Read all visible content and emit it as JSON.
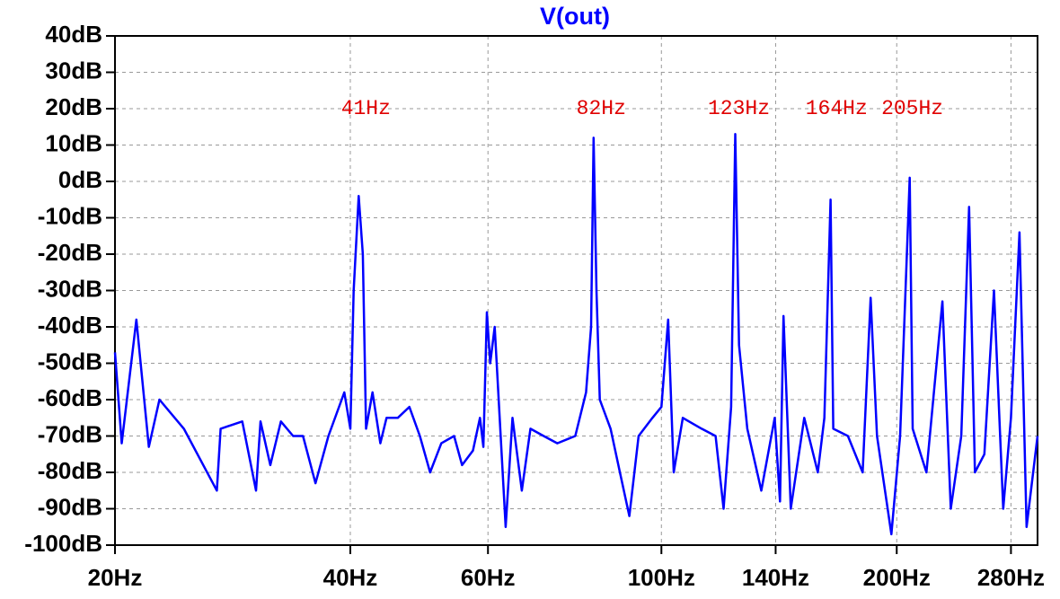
{
  "chart_data": {
    "type": "line",
    "series": [
      {
        "name": "V(out)",
        "color": "#0000ff",
        "x": [
          20,
          20.4,
          21.3,
          22.1,
          22.8,
          24.5,
          27.0,
          27.3,
          29.1,
          30.3,
          30.7,
          31.6,
          32.6,
          33.8,
          34.8,
          36.1,
          37.5,
          39.3,
          40.0,
          40.4,
          41.0,
          41.5,
          41.9,
          42.7,
          43.7,
          44.5,
          46.0,
          47.6,
          49.1,
          50.6,
          52.3,
          54.3,
          55.6,
          57.4,
          58.6,
          59.2,
          59.8,
          60.4,
          61.2,
          63.2,
          64.5,
          66.3,
          68.0,
          70.7,
          73.6,
          77.6,
          80.1,
          81.3,
          81.9,
          82.6,
          83.4,
          86.1,
          88.5,
          91.0,
          93.5,
          97.4,
          100,
          102,
          103.7,
          106.5,
          112.6,
          117.3,
          120.1,
          122.8,
          124.3,
          125.7,
          128.8,
          134.2,
          139.6,
          141.8,
          143.3,
          146.4,
          152.3,
          158.5,
          161.6,
          164.6,
          165.9,
          173.2,
          180.9,
          185.2,
          188.7,
          196.9,
          202,
          207.8,
          209.6,
          218.3,
          228.8,
          234.5,
          241.9,
          247.5,
          251.8,
          258.9,
          266.3,
          273.7,
          280,
          287.1,
          293.2,
          302.8
        ],
        "values": [
          -47,
          -72,
          -38,
          -73,
          -60,
          -68,
          -85,
          -68,
          -66,
          -85,
          -66,
          -78,
          -66,
          -70,
          -70,
          -83,
          -70,
          -58,
          -68,
          -30,
          -4,
          -20,
          -68,
          -58,
          -72,
          -65,
          -65,
          -62,
          -70,
          -80,
          -72,
          -70,
          -78,
          -74,
          -65,
          -73,
          -36,
          -50,
          -40,
          -95,
          -65,
          -85,
          -68,
          -70,
          -72,
          -70,
          -58,
          -40,
          12,
          -30,
          -60,
          -68,
          -80,
          -92,
          -70,
          -65,
          -62,
          -38,
          -80,
          -65,
          -68,
          -70,
          -90,
          -62,
          13,
          -45,
          -68,
          -85,
          -65,
          -88,
          -37,
          -90,
          -65,
          -80,
          -65,
          -5,
          -68,
          -70,
          -80,
          -32,
          -70,
          -97,
          -70,
          1,
          -68,
          -80,
          -33,
          -90,
          -70,
          -7,
          -80,
          -75,
          -30,
          -90,
          -65,
          -14,
          -95,
          -70
        ]
      }
    ],
    "xscale": "log",
    "xlim": [
      20,
      302.8
    ],
    "ylim": [
      -100,
      40
    ],
    "xticks": [
      {
        "value": 20,
        "label": "20Hz"
      },
      {
        "value": 40,
        "label": "40Hz"
      },
      {
        "value": 60,
        "label": "60Hz"
      },
      {
        "value": 100,
        "label": "100Hz"
      },
      {
        "value": 140,
        "label": "140Hz"
      },
      {
        "value": 200,
        "label": "200Hz"
      },
      {
        "value": 280,
        "label": "280Hz"
      }
    ],
    "yticks": [
      {
        "value": 40,
        "label": "40dB"
      },
      {
        "value": 30,
        "label": "30dB"
      },
      {
        "value": 20,
        "label": "20dB"
      },
      {
        "value": 10,
        "label": "10dB"
      },
      {
        "value": 0,
        "label": "0dB"
      },
      {
        "value": -10,
        "label": "-10dB"
      },
      {
        "value": -20,
        "label": "-20dB"
      },
      {
        "value": -30,
        "label": "-30dB"
      },
      {
        "value": -40,
        "label": "-40dB"
      },
      {
        "value": -50,
        "label": "-50dB"
      },
      {
        "value": -60,
        "label": "-60dB"
      },
      {
        "value": -70,
        "label": "-70dB"
      },
      {
        "value": -80,
        "label": "-80dB"
      },
      {
        "value": -90,
        "label": "-90dB"
      },
      {
        "value": -100,
        "label": "-100dB"
      }
    ],
    "grid": true,
    "annotations": [
      {
        "text": "41Hz",
        "x": 41,
        "y": 20
      },
      {
        "text": "82Hz",
        "x": 82,
        "y": 20
      },
      {
        "text": "123Hz",
        "x": 123,
        "y": 20
      },
      {
        "text": "164Hz",
        "x": 164,
        "y": 20
      },
      {
        "text": "205Hz",
        "x": 205,
        "y": 20
      }
    ]
  }
}
